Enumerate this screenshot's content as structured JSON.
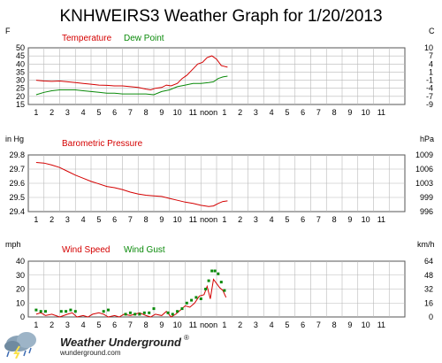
{
  "page": {
    "title": "KNHWEIRS3 Weather Graph for 1/20/2013",
    "footer_brand": "Weather Underground",
    "footer_url": "wunderground.com",
    "footer_reg": "®"
  },
  "colors": {
    "temperature": "#d40000",
    "dew_point": "#0a8a0a",
    "pressure": "#d40000",
    "wind_speed": "#d40000",
    "wind_gust": "#0a8a0a",
    "grid": "#b8b8b8"
  },
  "x_axis": {
    "hour_labels": [
      "1",
      "2",
      "3",
      "4",
      "5",
      "6",
      "7",
      "8",
      "9",
      "10",
      "11",
      "noon",
      "1",
      "2",
      "3",
      "4",
      "5",
      "6",
      "7",
      "8",
      "9",
      "10",
      "11"
    ]
  },
  "chart_data": [
    {
      "type": "line",
      "panel": "temperature",
      "legend": [
        "Temperature",
        "Dew Point"
      ],
      "y_left_unit": "F",
      "y_right_unit": "C",
      "y_left_ticks": [
        50,
        45,
        40,
        35,
        30,
        25,
        20,
        15
      ],
      "y_right_ticks": [
        10,
        7,
        4,
        1,
        -1,
        -4,
        -7,
        -9
      ],
      "ylim": [
        15,
        50
      ],
      "grid": true,
      "series": [
        {
          "name": "Temperature",
          "x": [
            0,
            0.5,
            1,
            1.5,
            2,
            2.5,
            3,
            3.5,
            4,
            4.5,
            5,
            5.5,
            6,
            6.5,
            7,
            7.3,
            7.6,
            8,
            8.3,
            8.6,
            9,
            9.3,
            9.6,
            10,
            10.3,
            10.6,
            10.9,
            11.2,
            11.5,
            11.8,
            12.2
          ],
          "values": [
            30,
            29.5,
            29.3,
            29.5,
            29,
            28.5,
            28,
            27.5,
            27,
            26.8,
            26.5,
            26.5,
            26,
            25.5,
            24.5,
            24,
            25,
            25.5,
            27,
            26.5,
            28,
            31,
            33,
            37,
            40,
            41,
            44,
            45,
            43,
            39,
            38
          ]
        },
        {
          "name": "Dew Point",
          "x": [
            0,
            0.5,
            1,
            1.5,
            2,
            2.5,
            3,
            3.5,
            4,
            4.5,
            5,
            5.5,
            6,
            6.5,
            7,
            7.5,
            8,
            8.5,
            9,
            9.5,
            10,
            10.5,
            11,
            11.3,
            11.6,
            11.9,
            12.2
          ],
          "values": [
            21,
            22.5,
            23.5,
            24,
            24,
            24,
            23.5,
            23,
            22.5,
            22,
            22,
            21.5,
            21.5,
            21.5,
            21.5,
            21,
            23,
            24,
            26,
            27,
            28,
            28,
            28.5,
            29,
            31,
            32,
            32.5
          ]
        }
      ]
    },
    {
      "type": "line",
      "panel": "pressure",
      "legend": [
        "Barometric Pressure"
      ],
      "y_left_unit": "in Hg",
      "y_right_unit": "hPa",
      "y_left_ticks": [
        "29.8",
        "29.7",
        "29.6",
        "29.5",
        "29.4"
      ],
      "y_right_ticks": [
        "1009",
        "1006",
        "1003",
        "999",
        "996"
      ],
      "ylim": [
        29.4,
        29.85
      ],
      "grid": true,
      "series": [
        {
          "name": "Barometric Pressure",
          "x": [
            0,
            0.5,
            1,
            1.5,
            2,
            2.5,
            3,
            3.5,
            4,
            4.5,
            5,
            5.5,
            6,
            6.5,
            7,
            7.5,
            8,
            8.5,
            9,
            9.5,
            10,
            10.5,
            11,
            11.3,
            11.6,
            11.9,
            12.2
          ],
          "values": [
            29.79,
            29.785,
            29.77,
            29.75,
            29.72,
            29.69,
            29.665,
            29.64,
            29.62,
            29.6,
            29.59,
            29.575,
            29.555,
            29.54,
            29.53,
            29.525,
            29.52,
            29.505,
            29.49,
            29.475,
            29.465,
            29.45,
            29.44,
            29.445,
            29.465,
            29.48,
            29.485
          ]
        }
      ]
    },
    {
      "type": "line",
      "panel": "wind",
      "legend": [
        "Wind Speed",
        "Wind Gust"
      ],
      "y_left_unit": "mph",
      "y_right_unit": "km/h",
      "y_left_ticks": [
        40,
        30,
        20,
        10,
        0
      ],
      "y_right_ticks": [
        64,
        48,
        32,
        16,
        0
      ],
      "ylim": [
        0,
        40
      ],
      "grid": true,
      "series": [
        {
          "name": "Wind Speed",
          "x": [
            0,
            0.3,
            0.6,
            1,
            1.5,
            2,
            2.3,
            2.6,
            3,
            3.3,
            3.6,
            4,
            4.3,
            4.6,
            5,
            5.3,
            5.6,
            6,
            6.3,
            6.6,
            7,
            7.3,
            7.6,
            8,
            8.3,
            8.6,
            8.9,
            9.2,
            9.5,
            9.8,
            10.1,
            10.4,
            10.7,
            10.9,
            11.1,
            11.3,
            11.5,
            11.7,
            11.9,
            12.1
          ],
          "values": [
            2,
            3,
            1,
            2,
            0,
            2,
            3,
            0,
            1,
            0,
            2,
            3,
            2,
            0,
            1,
            0,
            2,
            1,
            2,
            3,
            1,
            0,
            2,
            1,
            4,
            0,
            2,
            5,
            8,
            7,
            10,
            15,
            16,
            22,
            13,
            27,
            24,
            21,
            19,
            14
          ]
        },
        {
          "name": "Wind Gust",
          "x": [
            0,
            0.3,
            0.6,
            1.6,
            1.9,
            2.2,
            2.5,
            4.3,
            4.6,
            5.7,
            6.0,
            6.3,
            6.6,
            6.9,
            7.2,
            7.5,
            8.4,
            8.7,
            9.0,
            9.3,
            9.6,
            9.9,
            10.2,
            10.5,
            10.8,
            11.0,
            11.2,
            11.4,
            11.6,
            11.8,
            12.0
          ],
          "values": [
            5,
            4,
            4,
            4,
            4,
            5,
            4,
            4,
            5,
            2,
            3,
            2,
            2,
            3,
            3,
            6,
            3,
            2,
            4,
            6,
            10,
            12,
            14,
            13,
            20,
            26,
            33,
            33,
            31,
            25,
            19
          ]
        }
      ]
    }
  ]
}
